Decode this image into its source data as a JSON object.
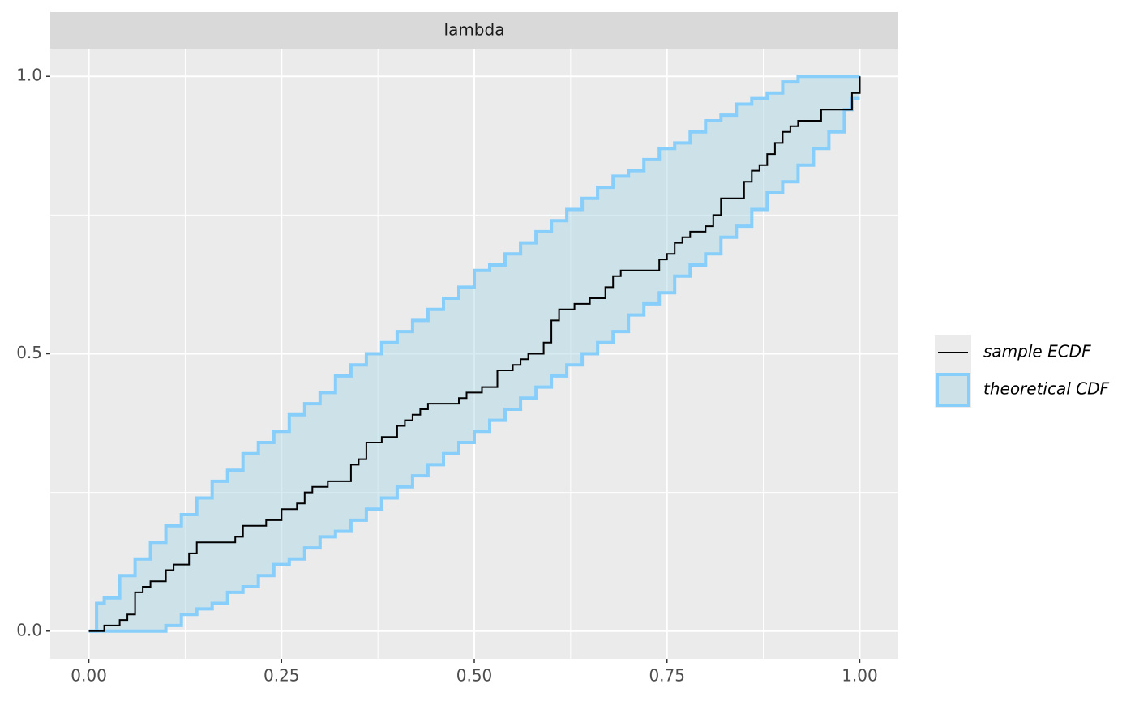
{
  "chart_data": {
    "type": "ecdf_band",
    "facet_label": "lambda",
    "xlim": [
      -0.05,
      1.05
    ],
    "ylim": [
      -0.05,
      1.05
    ],
    "xticks": [
      {
        "value": 0,
        "label": "0.00"
      },
      {
        "value": 0.25,
        "label": "0.25"
      },
      {
        "value": 0.5,
        "label": "0.50"
      },
      {
        "value": 0.75,
        "label": "0.75"
      },
      {
        "value": 1,
        "label": "1.00"
      }
    ],
    "yticks": [
      {
        "value": 0,
        "label": "0.0"
      },
      {
        "value": 0.5,
        "label": "0.5"
      },
      {
        "value": 1,
        "label": "1.0"
      }
    ],
    "grid": true,
    "legend": "right",
    "series": [
      {
        "name": "sample ECDF",
        "color": "#000000",
        "x": [
          0,
          0.02,
          0.04,
          0.05,
          0.06,
          0.07,
          0.08,
          0.1,
          0.11,
          0.13,
          0.14,
          0.19,
          0.2,
          0.23,
          0.25,
          0.27,
          0.28,
          0.29,
          0.31,
          0.34,
          0.35,
          0.36,
          0.38,
          0.4,
          0.41,
          0.42,
          0.43,
          0.44,
          0.48,
          0.49,
          0.51,
          0.53,
          0.55,
          0.56,
          0.57,
          0.59,
          0.6,
          0.61,
          0.63,
          0.65,
          0.67,
          0.68,
          0.69,
          0.74,
          0.75,
          0.76,
          0.77,
          0.78,
          0.8,
          0.81,
          0.82,
          0.85,
          0.86,
          0.87,
          0.88,
          0.89,
          0.9,
          0.91,
          0.92,
          0.95,
          0.99,
          1.0
        ],
        "values": [
          0,
          0.01,
          0.02,
          0.03,
          0.07,
          0.08,
          0.09,
          0.11,
          0.12,
          0.14,
          0.16,
          0.17,
          0.19,
          0.2,
          0.22,
          0.23,
          0.25,
          0.26,
          0.27,
          0.3,
          0.31,
          0.34,
          0.35,
          0.37,
          0.38,
          0.39,
          0.4,
          0.41,
          0.42,
          0.43,
          0.44,
          0.47,
          0.48,
          0.49,
          0.5,
          0.52,
          0.56,
          0.58,
          0.59,
          0.6,
          0.62,
          0.64,
          0.65,
          0.67,
          0.68,
          0.7,
          0.71,
          0.72,
          0.73,
          0.75,
          0.78,
          0.81,
          0.83,
          0.84,
          0.86,
          0.88,
          0.9,
          0.91,
          0.92,
          0.94,
          0.97,
          1.0
        ]
      },
      {
        "name": "theoretical CDF",
        "color": "#87cefa",
        "fill": "#add8e6",
        "x": [
          0,
          0.01,
          0.02,
          0.04,
          0.06,
          0.08,
          0.1,
          0.12,
          0.14,
          0.16,
          0.18,
          0.2,
          0.22,
          0.24,
          0.26,
          0.28,
          0.3,
          0.32,
          0.34,
          0.36,
          0.38,
          0.4,
          0.42,
          0.44,
          0.46,
          0.48,
          0.5,
          0.52,
          0.54,
          0.56,
          0.58,
          0.6,
          0.62,
          0.64,
          0.66,
          0.68,
          0.7,
          0.72,
          0.74,
          0.76,
          0.78,
          0.8,
          0.82,
          0.84,
          0.86,
          0.88,
          0.9,
          0.92,
          0.94,
          0.96,
          0.98,
          0.99,
          1.0
        ],
        "upper": [
          0,
          0.05,
          0.06,
          0.1,
          0.13,
          0.16,
          0.19,
          0.21,
          0.24,
          0.27,
          0.29,
          0.32,
          0.34,
          0.36,
          0.39,
          0.41,
          0.43,
          0.46,
          0.48,
          0.5,
          0.52,
          0.54,
          0.56,
          0.58,
          0.6,
          0.62,
          0.65,
          0.66,
          0.68,
          0.7,
          0.72,
          0.74,
          0.76,
          0.78,
          0.8,
          0.82,
          0.83,
          0.85,
          0.87,
          0.88,
          0.9,
          0.92,
          0.93,
          0.95,
          0.96,
          0.97,
          0.99,
          1,
          1,
          1,
          1,
          1,
          1
        ],
        "lower": [
          0,
          0,
          0,
          0,
          0,
          0,
          0.01,
          0.03,
          0.04,
          0.05,
          0.07,
          0.08,
          0.1,
          0.12,
          0.13,
          0.15,
          0.17,
          0.18,
          0.2,
          0.22,
          0.24,
          0.26,
          0.28,
          0.3,
          0.32,
          0.34,
          0.36,
          0.38,
          0.4,
          0.42,
          0.44,
          0.46,
          0.48,
          0.5,
          0.52,
          0.54,
          0.57,
          0.59,
          0.61,
          0.64,
          0.66,
          0.68,
          0.71,
          0.73,
          0.76,
          0.79,
          0.81,
          0.84,
          0.87,
          0.9,
          0.94,
          0.96,
          0.96
        ]
      }
    ]
  }
}
